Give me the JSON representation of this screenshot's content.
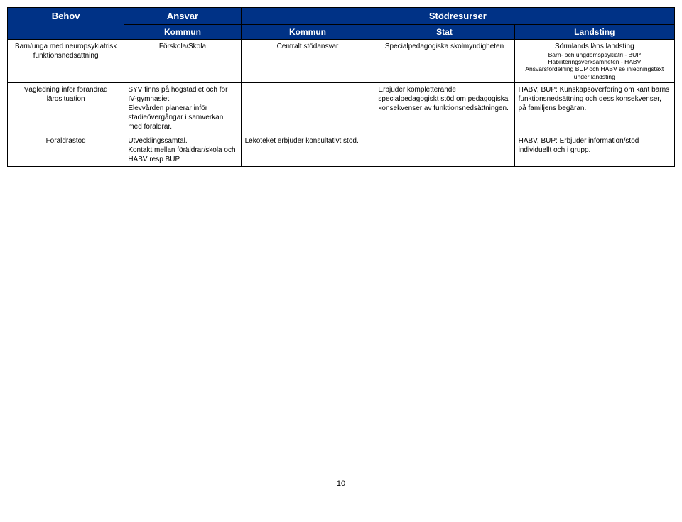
{
  "header": {
    "behov": "Behov",
    "ansvar": "Ansvar",
    "stodresurser": "Stödresurser",
    "kommun1": "Kommun",
    "kommun2": "Kommun",
    "stat": "Stat",
    "landsting": "Landsting"
  },
  "rows": [
    {
      "behov": "Barn/unga med neuropsykiatrisk funktionsnedsättning",
      "kommun1": "Förskola/Skola",
      "kommun2": "Centralt stödansvar",
      "stat": "Specialpedagogiska skolmyndigheten",
      "landsting_top": "Sörmlands läns landsting",
      "landsting_sub": "Barn- och ungdomspsykiatri - BUP\nHabiliteringsverksamheten - HABV\nAnsvarsfördelning BUP och HABV  se inledningstext under landsting"
    },
    {
      "behov": "Vägledning inför förändrad lärosituation",
      "kommun1": "SYV finns på högstadiet och för IV-gymnasiet.\nElevvården planerar inför stadieövergångar i samverkan med föräldrar.",
      "kommun2": "",
      "stat": "Erbjuder kompletterande specialpedagogiskt stöd om pedagogiska konsekvenser av funktionsnedsättningen.",
      "landsting": "HABV, BUP: Kunskapsöverföring om känt barns funktionsnedsättning och dess konsekvenser, på familjens begäran."
    },
    {
      "behov": "Föräldrastöd",
      "kommun1": "Utvecklingssamtal.\nKontakt mellan föräldrar/skola och HABV resp BUP",
      "kommun2": "Lekoteket erbjuder konsultativt stöd.",
      "stat": "",
      "landsting": "HABV, BUP: Erbjuder information/stöd individuellt och i grupp."
    }
  ],
  "pagenum": "10",
  "colors": {
    "header_bg": "#003286",
    "header_text": "#ffffff",
    "border": "#000000",
    "page_bg": "#ffffff",
    "body_text": "#000000"
  }
}
